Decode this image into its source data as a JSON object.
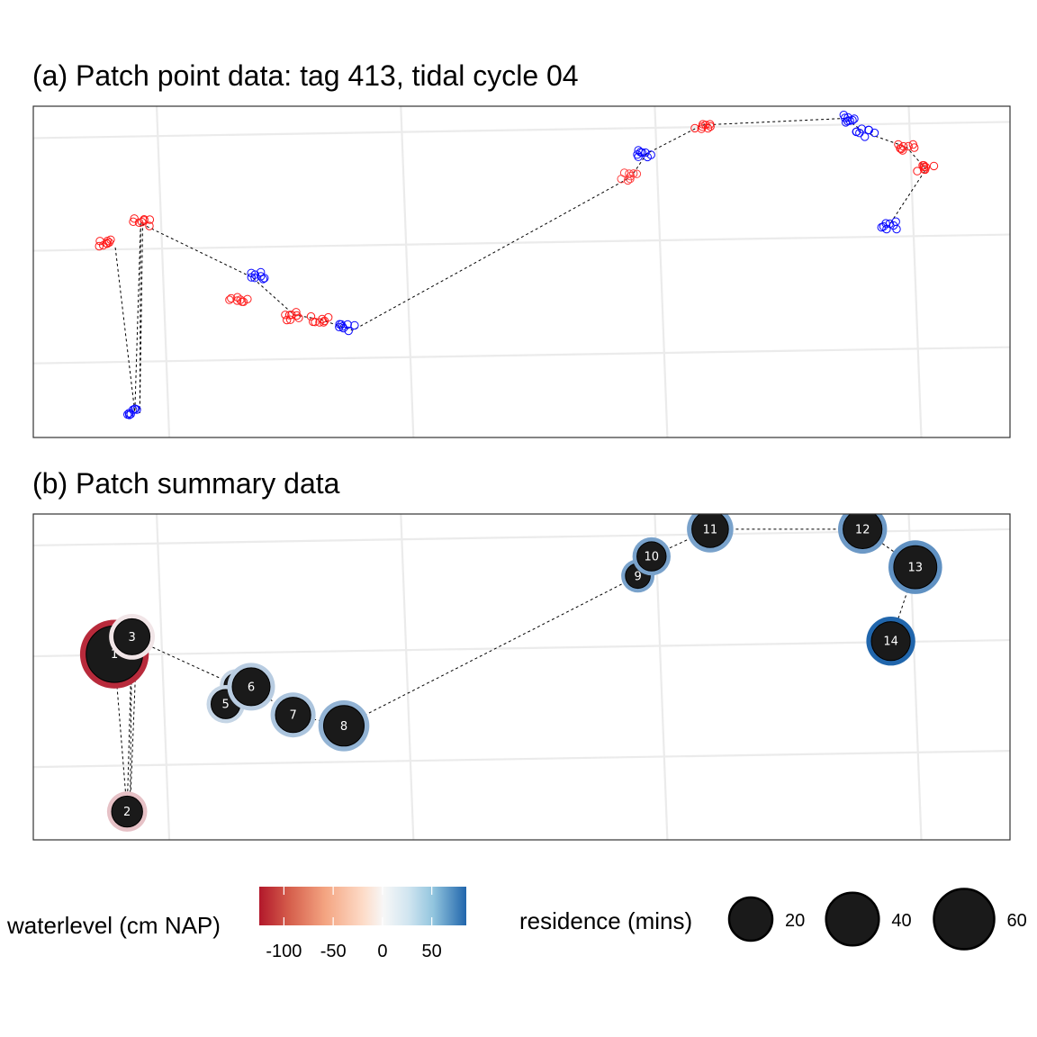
{
  "chart_data": [
    {
      "type": "scatter",
      "title": "(a) Patch point data: tag 413, tidal cycle 04",
      "xlabel": "",
      "ylabel": "",
      "grid": true,
      "point_style": "open-circle",
      "track_style": "dashed",
      "clusters": [
        {
          "x": 7.6,
          "y": 17.6,
          "waterlevel": -100
        },
        {
          "x": 11.0,
          "y": 19.5,
          "waterlevel": -100
        },
        {
          "x": 10.5,
          "y": 2.4,
          "waterlevel": 80
        },
        {
          "x": 21.0,
          "y": 12.4,
          "waterlevel": -90
        },
        {
          "x": 22.8,
          "y": 14.7,
          "waterlevel": 80
        },
        {
          "x": 26.8,
          "y": 11.0,
          "waterlevel": -100
        },
        {
          "x": 29.4,
          "y": 10.7,
          "waterlevel": -95
        },
        {
          "x": 32.2,
          "y": 9.9,
          "waterlevel": 80
        },
        {
          "x": 61.2,
          "y": 23.6,
          "waterlevel": -60
        },
        {
          "x": 62.8,
          "y": 25.7,
          "waterlevel": 80
        },
        {
          "x": 68.5,
          "y": 28.3,
          "waterlevel": -100
        },
        {
          "x": 83.1,
          "y": 28.9,
          "waterlevel": 80
        },
        {
          "x": 85.2,
          "y": 27.6,
          "waterlevel": 80
        },
        {
          "x": 89.4,
          "y": 26.3,
          "waterlevel": -100
        },
        {
          "x": 91.4,
          "y": 24.3,
          "waterlevel": -100
        },
        {
          "x": 87.6,
          "y": 19.2,
          "waterlevel": 80
        }
      ],
      "path": [
        {
          "x": 8.4,
          "y": 17.2
        },
        {
          "x": 10.4,
          "y": 2.3
        },
        {
          "x": 11.0,
          "y": 19.5
        },
        {
          "x": 10.9,
          "y": 2.2
        },
        {
          "x": 11.2,
          "y": 19.3
        },
        {
          "x": 22.4,
          "y": 14.5
        },
        {
          "x": 26.7,
          "y": 11.1
        },
        {
          "x": 29.3,
          "y": 10.7
        },
        {
          "x": 32.7,
          "y": 9.7
        },
        {
          "x": 61.2,
          "y": 23.6
        },
        {
          "x": 62.8,
          "y": 25.7
        },
        {
          "x": 68.5,
          "y": 28.3
        },
        {
          "x": 83.1,
          "y": 28.9
        },
        {
          "x": 85.2,
          "y": 27.6
        },
        {
          "x": 89.4,
          "y": 26.3
        },
        {
          "x": 91.4,
          "y": 24.3
        },
        {
          "x": 87.6,
          "y": 19.2
        }
      ]
    },
    {
      "type": "scatter",
      "title": "(b) Patch summary data",
      "xlabel": "",
      "ylabel": "",
      "grid": true,
      "track_style": "dashed",
      "patches": [
        {
          "id": "1",
          "x": 8.3,
          "y": 17.1,
          "residence": 65,
          "waterlevel": -115
        },
        {
          "id": "2",
          "x": 9.6,
          "y": 2.6,
          "residence": 10,
          "waterlevel": -30
        },
        {
          "id": "3",
          "x": 10.1,
          "y": 18.7,
          "residence": 17,
          "waterlevel": -10
        },
        {
          "id": "4",
          "x": 20.8,
          "y": 14.2,
          "residence": 4,
          "waterlevel": 20
        },
        {
          "id": "5",
          "x": 19.7,
          "y": 12.5,
          "residence": 8,
          "waterlevel": 20
        },
        {
          "id": "6",
          "x": 22.3,
          "y": 14.1,
          "residence": 20,
          "waterlevel": 25
        },
        {
          "id": "7",
          "x": 26.6,
          "y": 11.5,
          "residence": 16,
          "waterlevel": 30
        },
        {
          "id": "8",
          "x": 31.8,
          "y": 10.5,
          "residence": 25,
          "waterlevel": 40
        },
        {
          "id": "9",
          "x": 61.9,
          "y": 24.3,
          "residence": 4,
          "waterlevel": 50
        },
        {
          "id": "10",
          "x": 63.3,
          "y": 26.1,
          "residence": 8,
          "waterlevel": 50
        },
        {
          "id": "11",
          "x": 69.3,
          "y": 28.6,
          "residence": 18,
          "waterlevel": 50
        },
        {
          "id": "12",
          "x": 84.9,
          "y": 28.6,
          "residence": 22,
          "waterlevel": 55
        },
        {
          "id": "13",
          "x": 90.3,
          "y": 25.1,
          "residence": 30,
          "waterlevel": 60
        },
        {
          "id": "14",
          "x": 87.8,
          "y": 18.3,
          "residence": 22,
          "waterlevel": 85
        }
      ],
      "path": [
        {
          "x": 8.3,
          "y": 17.1
        },
        {
          "x": 9.6,
          "y": 2.6
        },
        {
          "x": 10.1,
          "y": 18.7
        },
        {
          "x": 9.9,
          "y": 2.6
        },
        {
          "x": 10.6,
          "y": 18.4
        },
        {
          "x": 20.8,
          "y": 14.2
        },
        {
          "x": 22.3,
          "y": 14.1
        },
        {
          "x": 26.6,
          "y": 11.5
        },
        {
          "x": 31.8,
          "y": 10.5
        },
        {
          "x": 61.9,
          "y": 24.3
        },
        {
          "x": 63.3,
          "y": 26.1
        },
        {
          "x": 69.3,
          "y": 28.6
        },
        {
          "x": 84.9,
          "y": 28.6
        },
        {
          "x": 90.3,
          "y": 25.1
        },
        {
          "x": 87.8,
          "y": 18.3
        }
      ]
    }
  ],
  "legend": {
    "waterlevel_title": "waterlevel (cm NAP)",
    "waterlevel_range": [
      -125,
      85
    ],
    "waterlevel_ticks": [
      {
        "value": -100,
        "label": "-100"
      },
      {
        "value": -50,
        "label": "-50"
      },
      {
        "value": 0,
        "label": "0"
      },
      {
        "value": 50,
        "label": "50"
      }
    ],
    "residence_title": "residence (mins)",
    "residence_items": [
      {
        "value": 20,
        "label": "20"
      },
      {
        "value": 40,
        "label": "40"
      },
      {
        "value": 60,
        "label": "60"
      }
    ]
  },
  "colors": {
    "low": "#b2182b",
    "mid": "#f7f7f7",
    "high": "#2166ac",
    "point_low": "#ff0000",
    "point_high": "#0000ff",
    "patch_fill": "#1a1a1a",
    "grid": "#ebebeb"
  }
}
